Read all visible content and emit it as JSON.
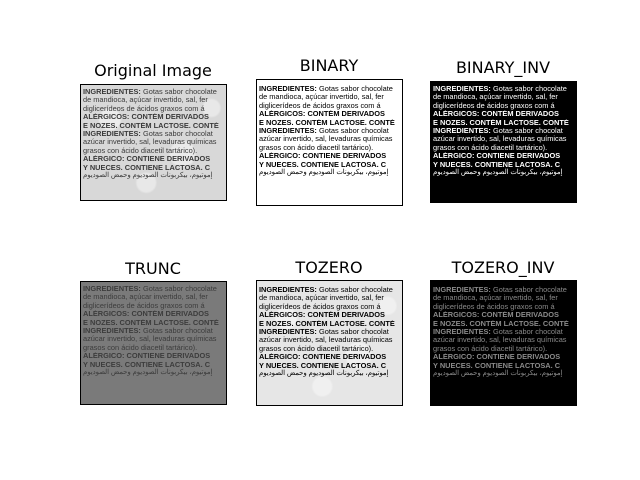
{
  "panels": [
    {
      "title": "Original Image"
    },
    {
      "title": "BINARY"
    },
    {
      "title": "BINARY_INV"
    },
    {
      "title": "TRUNC"
    },
    {
      "title": "TOZERO"
    },
    {
      "title": "TOZERO_INV"
    }
  ],
  "label": {
    "line1_bold": "INGREDIENTES:",
    "line1_rest": " Gotas sabor chocolate",
    "line2": "de mandioca, açúcar invertido, sal, fer",
    "line3": "diglicerídeos de ácidos graxos com á",
    "line4": "ALÉRGICOS: CONTÉM DERIVADOS",
    "line5": "E NOZES. CONTÉM LACTOSE. CONTÉ",
    "line6_bold": "INGREDIENTES:",
    "line6_rest": " Gotas sabor chocolat",
    "line7": "azúcar invertido, sal, levaduras químicas",
    "line8": "grasos con ácido diacetil tartárico).",
    "line9": "ALÉRGICO: CONTIENE DERIVADOS",
    "line10": "Y NUECES. CONTIENE LACTOSA. C",
    "line11": "إموتيوم، بيكربونات الصوديوم وحمض الصوديوم"
  }
}
